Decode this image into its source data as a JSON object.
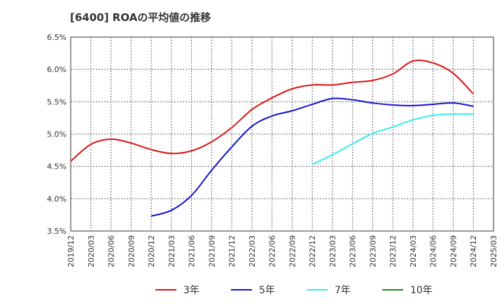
{
  "chart_data": {
    "type": "line",
    "title": "[6400]  ROAの平均値の推移",
    "xlabel": "",
    "ylabel": "",
    "ylim": [
      3.5,
      6.5
    ],
    "yticks": [
      "6.5%",
      "6.0%",
      "5.5%",
      "5.0%",
      "4.5%",
      "4.0%",
      "3.5%"
    ],
    "x_ticks": [
      "2019/12",
      "2020/03",
      "2020/06",
      "2020/09",
      "2020/12",
      "2021/03",
      "2021/06",
      "2021/09",
      "2021/12",
      "2022/03",
      "2022/06",
      "2022/09",
      "2022/12",
      "2023/03",
      "2023/06",
      "2023/09",
      "2023/12",
      "2024/03",
      "2024/06",
      "2024/09",
      "2024/12",
      "2025/03"
    ],
    "grid": true,
    "legend_position": "bottom",
    "series": [
      {
        "name": "3年",
        "color": "#dd1111",
        "points": [
          [
            "2019/12",
            4.58
          ],
          [
            "2020/03",
            4.84
          ],
          [
            "2020/06",
            4.92
          ],
          [
            "2020/09",
            4.86
          ],
          [
            "2020/12",
            4.76
          ],
          [
            "2021/03",
            4.7
          ],
          [
            "2021/06",
            4.74
          ],
          [
            "2021/09",
            4.88
          ],
          [
            "2021/12",
            5.1
          ],
          [
            "2022/03",
            5.38
          ],
          [
            "2022/06",
            5.56
          ],
          [
            "2022/09",
            5.7
          ],
          [
            "2022/12",
            5.76
          ],
          [
            "2023/03",
            5.76
          ],
          [
            "2023/06",
            5.8
          ],
          [
            "2023/09",
            5.83
          ],
          [
            "2023/12",
            5.93
          ],
          [
            "2024/03",
            6.13
          ],
          [
            "2024/06",
            6.1
          ],
          [
            "2024/09",
            5.94
          ],
          [
            "2024/12",
            5.62
          ]
        ]
      },
      {
        "name": "5年",
        "color": "#1111cc",
        "points": [
          [
            "2020/12",
            3.73
          ],
          [
            "2021/03",
            3.82
          ],
          [
            "2021/06",
            4.05
          ],
          [
            "2021/09",
            4.44
          ],
          [
            "2021/12",
            4.8
          ],
          [
            "2022/03",
            5.12
          ],
          [
            "2022/06",
            5.28
          ],
          [
            "2022/09",
            5.36
          ],
          [
            "2022/12",
            5.46
          ],
          [
            "2023/03",
            5.55
          ],
          [
            "2023/06",
            5.53
          ],
          [
            "2023/09",
            5.48
          ],
          [
            "2023/12",
            5.45
          ],
          [
            "2024/03",
            5.44
          ],
          [
            "2024/06",
            5.46
          ],
          [
            "2024/09",
            5.48
          ],
          [
            "2024/12",
            5.43
          ]
        ]
      },
      {
        "name": "7年",
        "color": "#33eeee",
        "points": [
          [
            "2022/12",
            4.53
          ],
          [
            "2023/03",
            4.68
          ],
          [
            "2023/06",
            4.85
          ],
          [
            "2023/09",
            5.01
          ],
          [
            "2023/12",
            5.11
          ],
          [
            "2024/03",
            5.22
          ],
          [
            "2024/06",
            5.29
          ],
          [
            "2024/09",
            5.31
          ],
          [
            "2024/12",
            5.31
          ]
        ]
      },
      {
        "name": "10年",
        "color": "#228822",
        "points": []
      }
    ]
  }
}
